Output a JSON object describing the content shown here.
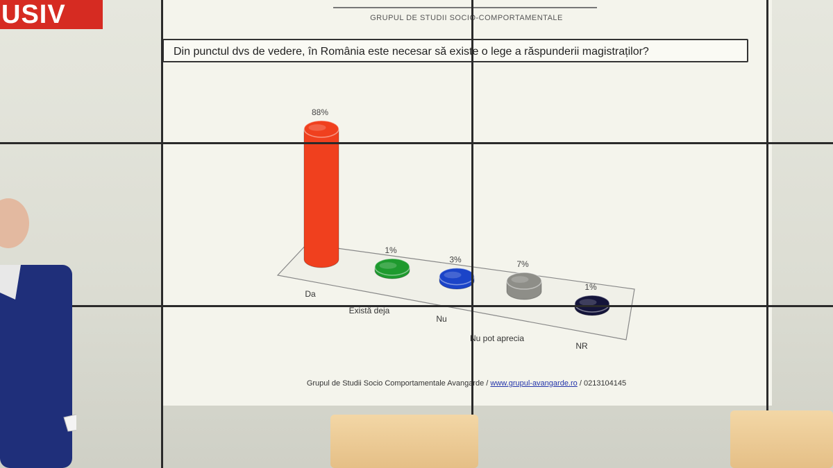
{
  "channel": {
    "logo_text": "USIV"
  },
  "slide": {
    "header": "GRUPUL DE STUDII SOCIO-COMPORTAMENTALE",
    "question": "Din punctul dvs de vedere, în România este necesar să existe o lege a răspunderii magistraților?",
    "footer_source": "Grupul de Studii Socio Comportamentale Avangarde",
    "footer_link": "www.grupul-avangarde.ro",
    "footer_phone": "0213104145"
  },
  "chart_data": {
    "type": "bar",
    "style": "3d-cylinder",
    "categories": [
      "Da",
      "Există deja",
      "Nu",
      "Nu pot aprecia",
      "NR"
    ],
    "values": [
      88,
      1,
      3,
      7,
      1
    ],
    "value_labels": [
      "88%",
      "1%",
      "3%",
      "7%",
      "1%"
    ],
    "colors": [
      "#f0401e",
      "#1e9a2e",
      "#1b44c8",
      "#8e8e88",
      "#14143a"
    ],
    "ylim": [
      0,
      100
    ],
    "grid": false,
    "legend": "none"
  }
}
